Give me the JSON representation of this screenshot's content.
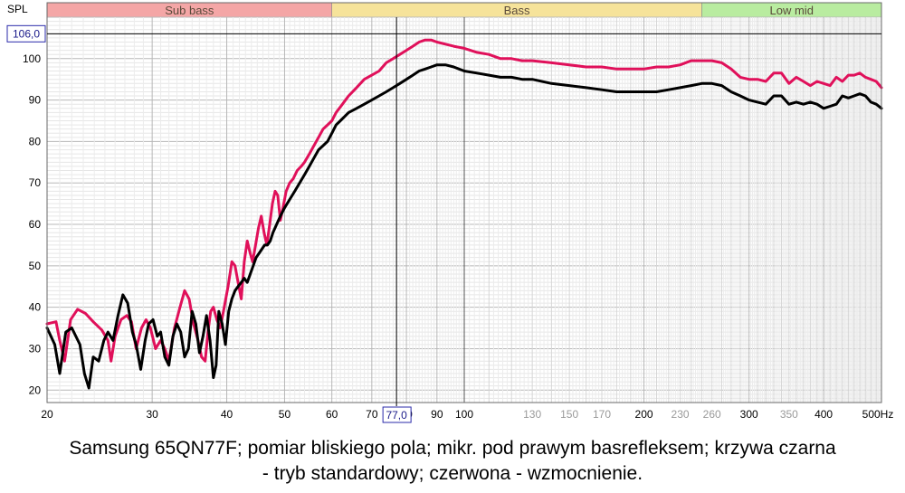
{
  "chart_data": {
    "type": "line",
    "y_label": "SPL",
    "x_unit": "Hz",
    "x_scale": "log",
    "x_range": [
      20,
      500
    ],
    "y_range": [
      17,
      110
    ],
    "y_ticks": [
      20,
      30,
      40,
      50,
      60,
      70,
      80,
      90,
      100
    ],
    "x_ticks": [
      {
        "v": 20,
        "label": "20",
        "dim": false
      },
      {
        "v": 30,
        "label": "30",
        "dim": false
      },
      {
        "v": 40,
        "label": "40",
        "dim": false
      },
      {
        "v": 50,
        "label": "50",
        "dim": false
      },
      {
        "v": 60,
        "label": "60",
        "dim": false
      },
      {
        "v": 70,
        "label": "70",
        "dim": false
      },
      {
        "v": 80,
        "label": "80",
        "dim": false
      },
      {
        "v": 90,
        "label": "90",
        "dim": false
      },
      {
        "v": 100,
        "label": "100",
        "dim": false
      },
      {
        "v": 130,
        "label": "130",
        "dim": true
      },
      {
        "v": 150,
        "label": "150",
        "dim": true
      },
      {
        "v": 170,
        "label": "170",
        "dim": true
      },
      {
        "v": 200,
        "label": "200",
        "dim": false
      },
      {
        "v": 230,
        "label": "230",
        "dim": true
      },
      {
        "v": 260,
        "label": "260",
        "dim": true
      },
      {
        "v": 300,
        "label": "300",
        "dim": false
      },
      {
        "v": 350,
        "label": "350",
        "dim": true
      },
      {
        "v": 400,
        "label": "400",
        "dim": false
      },
      {
        "v": 500,
        "label": "500Hz",
        "dim": false
      }
    ],
    "bands": [
      {
        "label": "Sub bass",
        "from": 20,
        "to": 60,
        "color": "#f4a6a6"
      },
      {
        "label": "Bass",
        "from": 60,
        "to": 250,
        "color": "#f6e39a"
      },
      {
        "label": "Low mid",
        "from": 250,
        "to": 500,
        "color": "#b9eca0"
      }
    ],
    "cursor": {
      "x": 77.0,
      "y": 106.0,
      "x_readout": "77,0",
      "y_readout": "106,0"
    },
    "series": [
      {
        "color": "#e0105a",
        "points": [
          [
            20,
            36
          ],
          [
            20.7,
            36.5
          ],
          [
            21,
            32
          ],
          [
            21.4,
            27
          ],
          [
            21.9,
            37
          ],
          [
            22.5,
            39.5
          ],
          [
            23.2,
            38.5
          ],
          [
            23.9,
            36.5
          ],
          [
            24.7,
            34.5
          ],
          [
            25.3,
            32
          ],
          [
            25.6,
            27
          ],
          [
            26,
            33
          ],
          [
            26.6,
            37
          ],
          [
            27.2,
            38
          ],
          [
            27.7,
            36.5
          ],
          [
            28.2,
            30
          ],
          [
            28.8,
            35
          ],
          [
            29.3,
            37
          ],
          [
            29.8,
            35
          ],
          [
            30.4,
            30
          ],
          [
            31,
            32
          ],
          [
            31.5,
            30
          ],
          [
            32,
            27
          ],
          [
            32.7,
            35
          ],
          [
            33.4,
            40
          ],
          [
            34,
            44
          ],
          [
            34.6,
            42
          ],
          [
            35.2,
            36
          ],
          [
            35.8,
            32
          ],
          [
            36.3,
            28
          ],
          [
            36.8,
            27
          ],
          [
            37.2,
            34
          ],
          [
            37.6,
            39
          ],
          [
            38,
            40
          ],
          [
            38.5,
            37
          ],
          [
            39,
            35
          ],
          [
            39.5,
            39
          ],
          [
            40.2,
            45
          ],
          [
            40.8,
            51
          ],
          [
            41.3,
            50
          ],
          [
            41.8,
            46
          ],
          [
            42.3,
            42
          ],
          [
            42.8,
            51
          ],
          [
            43.3,
            56
          ],
          [
            43.8,
            53
          ],
          [
            44.2,
            51
          ],
          [
            44.7,
            55
          ],
          [
            45.2,
            59
          ],
          [
            45.7,
            62
          ],
          [
            46.2,
            58
          ],
          [
            46.7,
            55
          ],
          [
            47.2,
            60
          ],
          [
            47.7,
            65
          ],
          [
            48.2,
            68
          ],
          [
            48.7,
            67
          ],
          [
            49.2,
            61
          ],
          [
            49.7,
            64
          ],
          [
            50.3,
            68
          ],
          [
            51,
            70
          ],
          [
            51.7,
            71
          ],
          [
            52.5,
            73
          ],
          [
            53.3,
            74
          ],
          [
            54,
            75
          ],
          [
            55,
            77
          ],
          [
            56,
            79
          ],
          [
            57,
            81
          ],
          [
            58,
            83
          ],
          [
            59,
            84
          ],
          [
            60,
            85
          ],
          [
            61,
            87
          ],
          [
            62.5,
            89
          ],
          [
            64,
            91
          ],
          [
            66,
            93
          ],
          [
            68,
            95
          ],
          [
            70,
            96
          ],
          [
            72,
            97
          ],
          [
            74,
            99
          ],
          [
            76,
            100
          ],
          [
            78,
            101
          ],
          [
            80,
            102
          ],
          [
            82,
            103
          ],
          [
            84,
            104
          ],
          [
            86,
            104.5
          ],
          [
            88,
            104.5
          ],
          [
            90,
            104
          ],
          [
            93,
            103.5
          ],
          [
            96,
            103
          ],
          [
            100,
            102.5
          ],
          [
            105,
            101.5
          ],
          [
            110,
            101
          ],
          [
            115,
            100
          ],
          [
            120,
            100
          ],
          [
            125,
            99.5
          ],
          [
            130,
            99.5
          ],
          [
            140,
            99
          ],
          [
            150,
            98.5
          ],
          [
            160,
            98
          ],
          [
            170,
            98
          ],
          [
            180,
            97.5
          ],
          [
            190,
            97.5
          ],
          [
            200,
            97.5
          ],
          [
            210,
            98
          ],
          [
            220,
            98
          ],
          [
            230,
            98.5
          ],
          [
            240,
            99.5
          ],
          [
            250,
            99.5
          ],
          [
            260,
            99.5
          ],
          [
            270,
            99
          ],
          [
            280,
            97.5
          ],
          [
            290,
            95.5
          ],
          [
            300,
            95
          ],
          [
            310,
            95
          ],
          [
            320,
            94.5
          ],
          [
            330,
            96.5
          ],
          [
            340,
            96.5
          ],
          [
            350,
            94
          ],
          [
            360,
            95.5
          ],
          [
            370,
            94.5
          ],
          [
            380,
            93.5
          ],
          [
            390,
            94.5
          ],
          [
            400,
            94
          ],
          [
            410,
            93.5
          ],
          [
            420,
            95.5
          ],
          [
            430,
            94.5
          ],
          [
            440,
            96
          ],
          [
            450,
            96
          ],
          [
            460,
            96.5
          ],
          [
            470,
            95.5
          ],
          [
            480,
            95
          ],
          [
            490,
            94.5
          ],
          [
            500,
            93
          ]
        ]
      },
      {
        "color": "#000000",
        "points": [
          [
            20,
            35
          ],
          [
            20.6,
            31
          ],
          [
            21,
            24
          ],
          [
            21.5,
            34
          ],
          [
            22,
            35
          ],
          [
            22.7,
            31
          ],
          [
            23.1,
            24
          ],
          [
            23.5,
            20.5
          ],
          [
            23.9,
            28
          ],
          [
            24.4,
            27
          ],
          [
            24.9,
            32
          ],
          [
            25.3,
            34
          ],
          [
            25.8,
            32
          ],
          [
            26.3,
            38
          ],
          [
            26.8,
            43
          ],
          [
            27.3,
            41
          ],
          [
            27.8,
            34
          ],
          [
            28.2,
            31
          ],
          [
            28.7,
            25
          ],
          [
            29.2,
            32
          ],
          [
            29.6,
            36
          ],
          [
            30.1,
            37
          ],
          [
            30.6,
            33
          ],
          [
            31,
            34
          ],
          [
            31.5,
            28
          ],
          [
            32,
            26
          ],
          [
            32.5,
            33
          ],
          [
            33,
            36
          ],
          [
            33.5,
            34
          ],
          [
            34,
            28
          ],
          [
            34.5,
            30
          ],
          [
            35,
            39
          ],
          [
            35.5,
            36
          ],
          [
            36,
            29
          ],
          [
            36.5,
            33
          ],
          [
            37,
            38
          ],
          [
            37.5,
            32
          ],
          [
            38,
            23
          ],
          [
            38.4,
            26
          ],
          [
            38.8,
            39
          ],
          [
            39.3,
            36
          ],
          [
            39.8,
            31
          ],
          [
            40.3,
            39
          ],
          [
            40.8,
            42
          ],
          [
            41.3,
            44
          ],
          [
            41.8,
            45
          ],
          [
            42.3,
            46
          ],
          [
            42.8,
            47
          ],
          [
            43.3,
            46
          ],
          [
            43.8,
            48
          ],
          [
            44.3,
            50
          ],
          [
            44.8,
            52
          ],
          [
            45.3,
            53
          ],
          [
            45.8,
            54
          ],
          [
            46.3,
            55
          ],
          [
            46.8,
            55
          ],
          [
            47.3,
            56
          ],
          [
            47.8,
            58
          ],
          [
            48.5,
            60
          ],
          [
            49.2,
            62
          ],
          [
            50,
            64
          ],
          [
            51,
            66
          ],
          [
            52,
            68
          ],
          [
            53,
            70
          ],
          [
            54,
            72
          ],
          [
            55,
            74
          ],
          [
            56,
            76
          ],
          [
            57,
            78
          ],
          [
            58,
            79
          ],
          [
            59,
            80
          ],
          [
            60,
            82
          ],
          [
            61,
            84
          ],
          [
            62,
            85
          ],
          [
            63,
            86
          ],
          [
            64,
            87
          ],
          [
            66,
            88
          ],
          [
            68,
            89
          ],
          [
            70,
            90
          ],
          [
            72,
            91
          ],
          [
            74,
            92
          ],
          [
            76,
            93
          ],
          [
            78,
            94
          ],
          [
            80,
            95
          ],
          [
            82,
            96
          ],
          [
            84,
            97
          ],
          [
            86,
            97.5
          ],
          [
            88,
            98
          ],
          [
            90,
            98.5
          ],
          [
            93,
            98.5
          ],
          [
            96,
            98
          ],
          [
            100,
            97
          ],
          [
            105,
            96.5
          ],
          [
            110,
            96
          ],
          [
            115,
            95.5
          ],
          [
            120,
            95.5
          ],
          [
            125,
            95
          ],
          [
            130,
            95
          ],
          [
            140,
            94
          ],
          [
            150,
            93.5
          ],
          [
            160,
            93
          ],
          [
            170,
            92.5
          ],
          [
            180,
            92
          ],
          [
            190,
            92
          ],
          [
            200,
            92
          ],
          [
            210,
            92
          ],
          [
            220,
            92.5
          ],
          [
            230,
            93
          ],
          [
            240,
            93.5
          ],
          [
            250,
            94
          ],
          [
            260,
            94
          ],
          [
            270,
            93.5
          ],
          [
            280,
            92
          ],
          [
            290,
            91
          ],
          [
            300,
            90
          ],
          [
            310,
            89.5
          ],
          [
            320,
            89
          ],
          [
            330,
            91
          ],
          [
            340,
            91
          ],
          [
            350,
            89
          ],
          [
            360,
            89.5
          ],
          [
            370,
            89
          ],
          [
            380,
            89.5
          ],
          [
            390,
            89
          ],
          [
            400,
            88
          ],
          [
            410,
            88.5
          ],
          [
            420,
            89
          ],
          [
            430,
            91
          ],
          [
            440,
            90.5
          ],
          [
            450,
            91
          ],
          [
            460,
            91.5
          ],
          [
            470,
            91
          ],
          [
            480,
            89.5
          ],
          [
            490,
            89
          ],
          [
            500,
            88
          ]
        ]
      }
    ]
  },
  "caption": {
    "line1": "Samsung 65QN77F; pomiar bliskiego pola; mikr. pod prawym basrefleksem; krzywa czarna",
    "line2": "- tryb standardowy; czerwona - wzmocnienie."
  }
}
